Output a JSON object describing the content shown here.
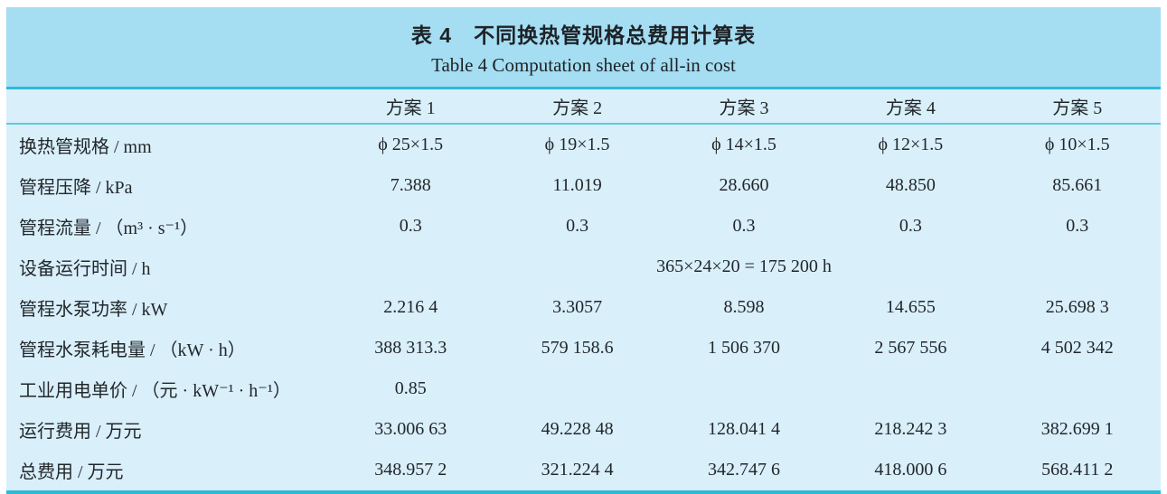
{
  "title": {
    "zh": "表 4　不同换热管规格总费用计算表",
    "en": "Table 4 Computation sheet of all-in cost"
  },
  "colors": {
    "title_band": "#a5ddf2",
    "table_body": "#d9effa",
    "rule_heavy": "#2fb9d9",
    "rule_light": "#63c8e1",
    "text": "#22272b"
  },
  "table": {
    "header": [
      "方案 1",
      "方案 2",
      "方案 3",
      "方案 4",
      "方案 5"
    ],
    "rows": [
      {
        "label": "换热管规格 / mm",
        "values": [
          "ϕ 25×1.5",
          "ϕ 19×1.5",
          "ϕ 14×1.5",
          "ϕ 12×1.5",
          "ϕ 10×1.5"
        ]
      },
      {
        "label": "管程压降 / kPa",
        "values": [
          "7.388",
          "11.019",
          "28.660",
          "48.850",
          "85.661"
        ]
      },
      {
        "label": "管程流量 / （m³ · s⁻¹）",
        "values": [
          "0.3",
          "0.3",
          "0.3",
          "0.3",
          "0.3"
        ]
      },
      {
        "label": "设备运行时间 / h",
        "span": "365×24×20 = 175 200 h"
      },
      {
        "label": "管程水泵功率 / kW",
        "values": [
          "2.216 4",
          "3.3057",
          "8.598",
          "14.655",
          "25.698 3"
        ]
      },
      {
        "label": "管程水泵耗电量 / （kW · h）",
        "values": [
          "388 313.3",
          "579 158.6",
          "1 506 370",
          "2 567 556",
          "4 502 342"
        ]
      },
      {
        "label": "工业用电单价 / （元 · kW⁻¹ · h⁻¹）",
        "values": [
          "0.85",
          "",
          "",
          "",
          ""
        ]
      },
      {
        "label": "运行费用 / 万元",
        "values": [
          "33.006 63",
          "49.228 48",
          "128.041 4",
          "218.242 3",
          "382.699 1"
        ]
      },
      {
        "label": "总费用 / 万元",
        "values": [
          "348.957 2",
          "321.224 4",
          "342.747 6",
          "418.000 6",
          "568.411 2"
        ]
      }
    ]
  }
}
